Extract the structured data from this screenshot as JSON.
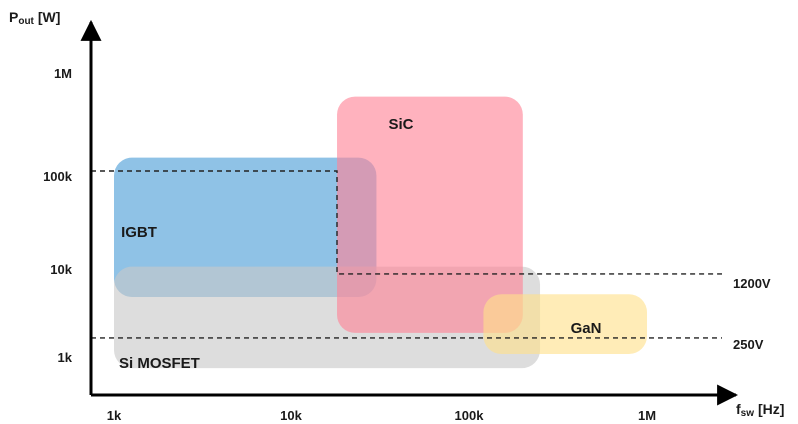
{
  "chart_data": {
    "type": "area",
    "title": "",
    "xlabel": {
      "main": "f",
      "sub": "sw",
      "unit": "[Hz]"
    },
    "ylabel": {
      "main": "P",
      "sub": "out",
      "unit": "[W]"
    },
    "x_scale": "log",
    "y_scale": "log",
    "xticks": [
      "1k",
      "10k",
      "100k",
      "1M"
    ],
    "yticks": [
      "1k",
      "10k",
      "100k",
      "1M"
    ],
    "regions": [
      {
        "name": "IGBT",
        "color": "#5aa5da",
        "x_range": [
          1000,
          30000
        ],
        "y_range": [
          4200,
          140000
        ]
      },
      {
        "name": "Si MOSFET",
        "color": "#c8c8c8",
        "x_range": [
          1000,
          250000
        ],
        "y_range": [
          700,
          9000
        ]
      },
      {
        "name": "SiC",
        "color": "#ff8296",
        "x_range": [
          18000,
          200000
        ],
        "y_range": [
          1700,
          650000
        ]
      },
      {
        "name": "GaN",
        "color": "#ffe08a",
        "x_range": [
          120000,
          1000000
        ],
        "y_range": [
          1000,
          4500
        ]
      }
    ],
    "voltage_lines": [
      {
        "label": "1200V",
        "points": [
          [
            1000,
            100000
          ],
          [
            18000,
            100000
          ],
          [
            18000,
            7500
          ],
          [
            1000000,
            7500
          ]
        ]
      },
      {
        "label": "250V",
        "points": [
          [
            1000,
            1500
          ],
          [
            1000000,
            1500
          ]
        ]
      }
    ],
    "grid": false,
    "legend": "none"
  }
}
